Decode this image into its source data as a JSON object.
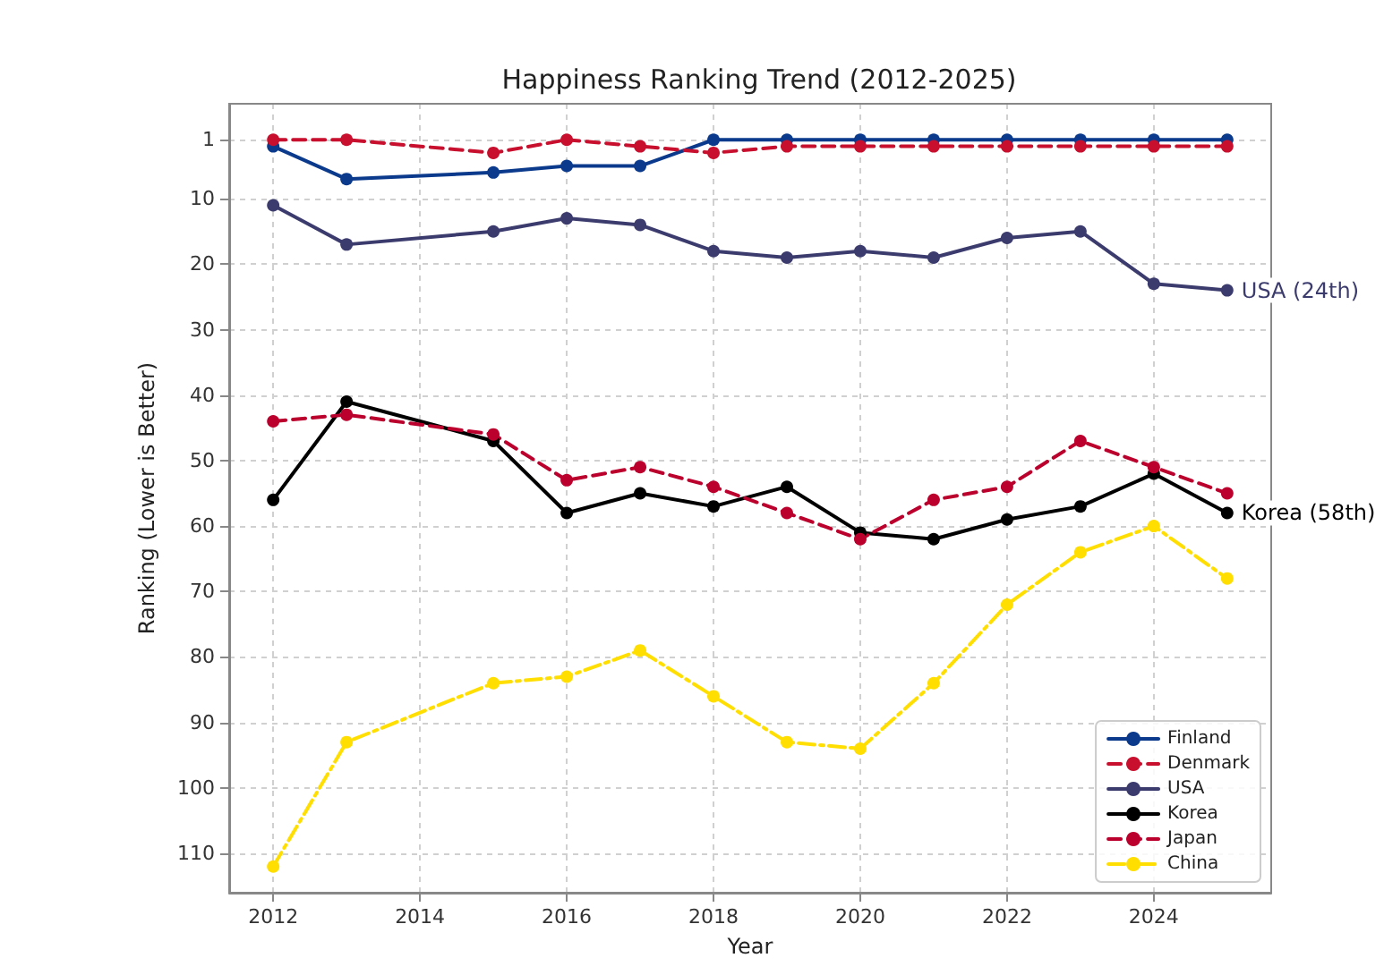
{
  "chart_data": {
    "type": "line",
    "title": "Happiness Ranking Trend (2012-2025)",
    "xlabel": "Year",
    "ylabel": "Ranking (Lower is Better)",
    "x": [
      2012,
      2013,
      2015,
      2016,
      2017,
      2018,
      2019,
      2020,
      2021,
      2022,
      2023,
      2024,
      2025
    ],
    "series": [
      {
        "name": "Finland",
        "color": "#0b3a8c",
        "line_style": "solid",
        "values": [
          2,
          7,
          6,
          5,
          5,
          1,
          1,
          1,
          1,
          1,
          1,
          1,
          1
        ]
      },
      {
        "name": "Denmark",
        "color": "#c8102e",
        "line_style": "dashed",
        "values": [
          1,
          1,
          3,
          1,
          2,
          3,
          2,
          2,
          2,
          2,
          2,
          2,
          2
        ]
      },
      {
        "name": "USA",
        "color": "#3c3b6e",
        "line_style": "solid",
        "values": [
          11,
          17,
          15,
          13,
          14,
          18,
          19,
          18,
          19,
          16,
          15,
          23,
          24
        ]
      },
      {
        "name": "Korea",
        "color": "#000000",
        "line_style": "solid",
        "values": [
          56,
          41,
          47,
          58,
          55,
          57,
          54,
          61,
          62,
          59,
          57,
          52,
          58
        ]
      },
      {
        "name": "Japan",
        "color": "#bc002d",
        "line_style": "dashed",
        "values": [
          44,
          43,
          46,
          53,
          51,
          54,
          58,
          62,
          56,
          54,
          47,
          51,
          55
        ]
      },
      {
        "name": "China",
        "color": "#ffde00",
        "line_style": "dashdot",
        "values": [
          112,
          93,
          84,
          83,
          79,
          86,
          93,
          94,
          84,
          72,
          64,
          60,
          68
        ]
      }
    ],
    "annotations": [
      {
        "text": "USA (24th)",
        "x": 2025,
        "y": 24
      },
      {
        "text": "Korea (58th)",
        "x": 2025,
        "y": 58
      }
    ],
    "xlim": [
      2011.4,
      2025.6
    ],
    "xticks": [
      2012,
      2014,
      2016,
      2018,
      2020,
      2022,
      2024
    ],
    "ylim": [
      116,
      -4.5
    ],
    "yticks": [
      1,
      10,
      20,
      30,
      40,
      50,
      60,
      70,
      80,
      90,
      100,
      110
    ],
    "grid": true,
    "legend": "bottom right",
    "marker": "circle"
  }
}
